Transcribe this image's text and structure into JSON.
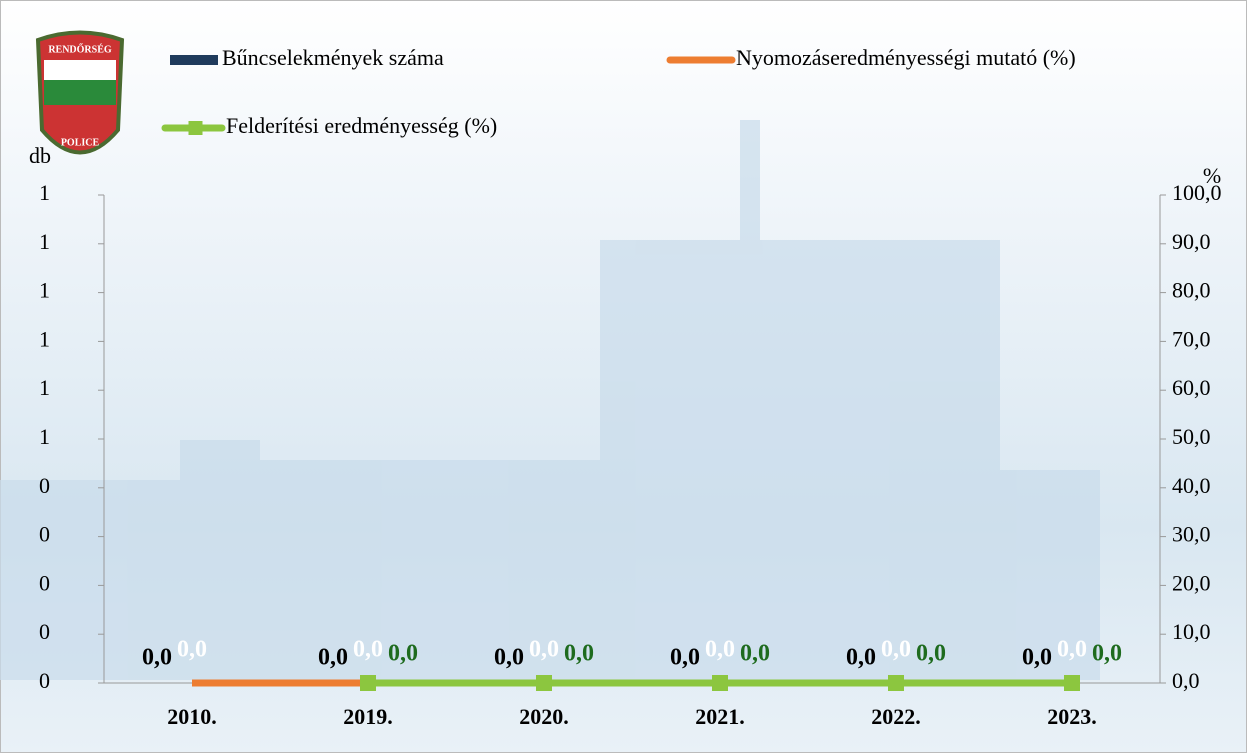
{
  "logo": {
    "top": "RENDŐRSÉG",
    "bottom": "POLICE"
  },
  "chart_data": {
    "type": "bar-line",
    "ylabel": "db",
    "y2label": "%",
    "categories": [
      "2010.",
      "2019.",
      "2020.",
      "2021.",
      "2022.",
      "2023."
    ],
    "ylim": [
      0,
      1
    ],
    "yticks": [
      {
        "value": 0,
        "label": "0"
      },
      {
        "value": 0.1,
        "label": "0"
      },
      {
        "value": 0.2,
        "label": "0"
      },
      {
        "value": 0.3,
        "label": "0"
      },
      {
        "value": 0.4,
        "label": "0"
      },
      {
        "value": 0.5,
        "label": "1"
      },
      {
        "value": 0.6,
        "label": "1"
      },
      {
        "value": 0.7,
        "label": "1"
      },
      {
        "value": 0.8,
        "label": "1"
      },
      {
        "value": 0.9,
        "label": "1"
      },
      {
        "value": 1,
        "label": "1"
      }
    ],
    "y2lim": [
      0,
      100
    ],
    "y2ticks": [
      {
        "value": 0,
        "label": "0,0"
      },
      {
        "value": 10,
        "label": "10,0"
      },
      {
        "value": 20,
        "label": "20,0"
      },
      {
        "value": 30,
        "label": "30,0"
      },
      {
        "value": 40,
        "label": "40,0"
      },
      {
        "value": 50,
        "label": "50,0"
      },
      {
        "value": 60,
        "label": "60,0"
      },
      {
        "value": 70,
        "label": "70,0"
      },
      {
        "value": 80,
        "label": "80,0"
      },
      {
        "value": 90,
        "label": "90,0"
      },
      {
        "value": 100,
        "label": "100,0"
      }
    ],
    "series": [
      {
        "name": "Bűncselekmények száma",
        "kind": "bar",
        "color": "#1f3b5c",
        "label_color": "#ffffff",
        "values": [
          0,
          0,
          0,
          0,
          0,
          0
        ],
        "value_labels": [
          "0,0",
          "0,0",
          "0,0",
          "0,0",
          "0,0",
          "0,0"
        ]
      },
      {
        "name": "Nyomozáseredményességi mutató (%)",
        "kind": "line",
        "axis": "y2",
        "color": "#ed7d31",
        "label_color": "#000000",
        "values": [
          0,
          0,
          0,
          0,
          0,
          0
        ],
        "value_labels": [
          "0,0",
          "0,0",
          "0,0",
          "0,0",
          "0,0",
          "0,0"
        ]
      },
      {
        "name": "Felderítési eredményesség (%)",
        "kind": "line",
        "axis": "y2",
        "marker": "square",
        "color": "#8cc63f",
        "label_color": "#1e6b1e",
        "values": [
          null,
          0,
          0,
          0,
          0,
          0
        ],
        "value_labels": [
          null,
          "0,0",
          "0,0",
          "0,0",
          "0,0",
          "0,0"
        ]
      }
    ]
  }
}
